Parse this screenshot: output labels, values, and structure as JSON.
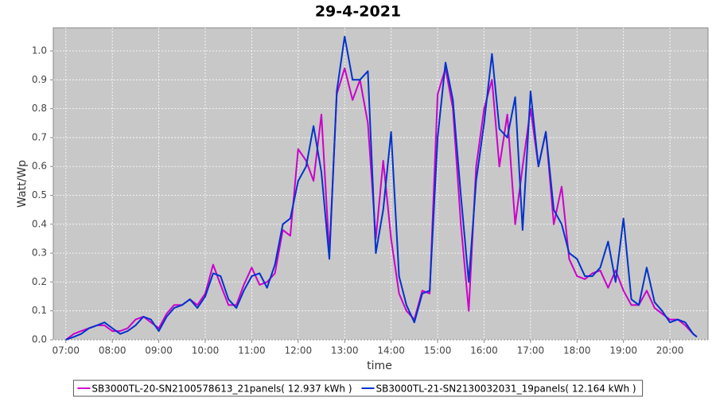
{
  "chart_data": {
    "type": "line",
    "title": "29-4-2021",
    "x_label": "time",
    "y_label": "Watt/Wp",
    "x": [
      7,
      7.17,
      7.33,
      7.5,
      7.67,
      7.83,
      8,
      8.17,
      8.33,
      8.5,
      8.67,
      8.83,
      9,
      9.17,
      9.33,
      9.5,
      9.67,
      9.83,
      10,
      10.17,
      10.33,
      10.5,
      10.67,
      10.83,
      11,
      11.17,
      11.33,
      11.5,
      11.67,
      11.83,
      12,
      12.17,
      12.33,
      12.5,
      12.67,
      12.83,
      13,
      13.17,
      13.33,
      13.5,
      13.67,
      13.83,
      14,
      14.17,
      14.33,
      14.5,
      14.67,
      14.83,
      15,
      15.17,
      15.33,
      15.5,
      15.67,
      15.83,
      16,
      16.17,
      16.33,
      16.5,
      16.67,
      16.83,
      17,
      17.17,
      17.33,
      17.5,
      17.67,
      17.83,
      18,
      18.17,
      18.33,
      18.5,
      18.67,
      18.83,
      19,
      19.17,
      19.33,
      19.5,
      19.67,
      19.83,
      20,
      20.17,
      20.33,
      20.5,
      20.58
    ],
    "series": [
      {
        "name": "SB3000TL-20-SN2100578613_21panels( 12.937 kWh )",
        "color": "#cc00cc",
        "values": [
          0,
          0.02,
          0.03,
          0.04,
          0.05,
          0.05,
          0.03,
          0.03,
          0.04,
          0.07,
          0.08,
          0.06,
          0.04,
          0.09,
          0.12,
          0.12,
          0.14,
          0.12,
          0.16,
          0.26,
          0.19,
          0.12,
          0.12,
          0.19,
          0.25,
          0.19,
          0.2,
          0.23,
          0.38,
          0.36,
          0.66,
          0.62,
          0.55,
          0.78,
          0.3,
          0.85,
          0.94,
          0.83,
          0.9,
          0.75,
          0.35,
          0.62,
          0.35,
          0.16,
          0.1,
          0.07,
          0.17,
          0.16,
          0.85,
          0.94,
          0.8,
          0.4,
          0.1,
          0.6,
          0.8,
          0.9,
          0.6,
          0.78,
          0.4,
          0.6,
          0.8,
          0.6,
          0.72,
          0.4,
          0.53,
          0.28,
          0.22,
          0.21,
          0.23,
          0.24,
          0.18,
          0.24,
          0.17,
          0.12,
          0.12,
          0.17,
          0.11,
          0.09,
          0.07,
          0.07,
          0.05,
          0.02,
          0.01
        ]
      },
      {
        "name": "SB3000TL-21-SN2130032031_19panels( 12.164 kWh )",
        "color": "#0033cc",
        "values": [
          0,
          0.01,
          0.02,
          0.04,
          0.05,
          0.06,
          0.04,
          0.02,
          0.03,
          0.05,
          0.08,
          0.07,
          0.03,
          0.08,
          0.11,
          0.12,
          0.14,
          0.11,
          0.15,
          0.23,
          0.22,
          0.14,
          0.11,
          0.17,
          0.22,
          0.23,
          0.18,
          0.26,
          0.4,
          0.42,
          0.55,
          0.6,
          0.74,
          0.58,
          0.28,
          0.86,
          1.05,
          0.9,
          0.9,
          0.93,
          0.3,
          0.45,
          0.72,
          0.22,
          0.12,
          0.06,
          0.16,
          0.17,
          0.7,
          0.96,
          0.83,
          0.5,
          0.2,
          0.55,
          0.75,
          0.99,
          0.73,
          0.7,
          0.84,
          0.38,
          0.86,
          0.6,
          0.72,
          0.45,
          0.4,
          0.3,
          0.28,
          0.22,
          0.22,
          0.25,
          0.34,
          0.2,
          0.42,
          0.14,
          0.12,
          0.25,
          0.13,
          0.1,
          0.06,
          0.07,
          0.06,
          0.02,
          0.01
        ]
      }
    ],
    "xlim": [
      6.73,
      20.82
    ],
    "ylim": [
      0,
      1.08
    ],
    "xticks": [
      {
        "value": 7,
        "label": "07:00"
      },
      {
        "value": 8,
        "label": "08:00"
      },
      {
        "value": 9,
        "label": "09:00"
      },
      {
        "value": 10,
        "label": "10:00"
      },
      {
        "value": 11,
        "label": "11:00"
      },
      {
        "value": 12,
        "label": "12:00"
      },
      {
        "value": 13,
        "label": "13:00"
      },
      {
        "value": 14,
        "label": "14:00"
      },
      {
        "value": 15,
        "label": "15:00"
      },
      {
        "value": 16,
        "label": "16:00"
      },
      {
        "value": 17,
        "label": "17:00"
      },
      {
        "value": 18,
        "label": "18:00"
      },
      {
        "value": 19,
        "label": "19:00"
      },
      {
        "value": 20,
        "label": "20:00"
      }
    ],
    "yticks": [
      {
        "value": 0,
        "label": "0.0"
      },
      0.1,
      0.2,
      0.3,
      0.4,
      0.5,
      0.6,
      0.7,
      0.8,
      0.9,
      {
        "value": 1,
        "label": "1.0"
      }
    ],
    "grid": true,
    "legend": "bottom"
  }
}
